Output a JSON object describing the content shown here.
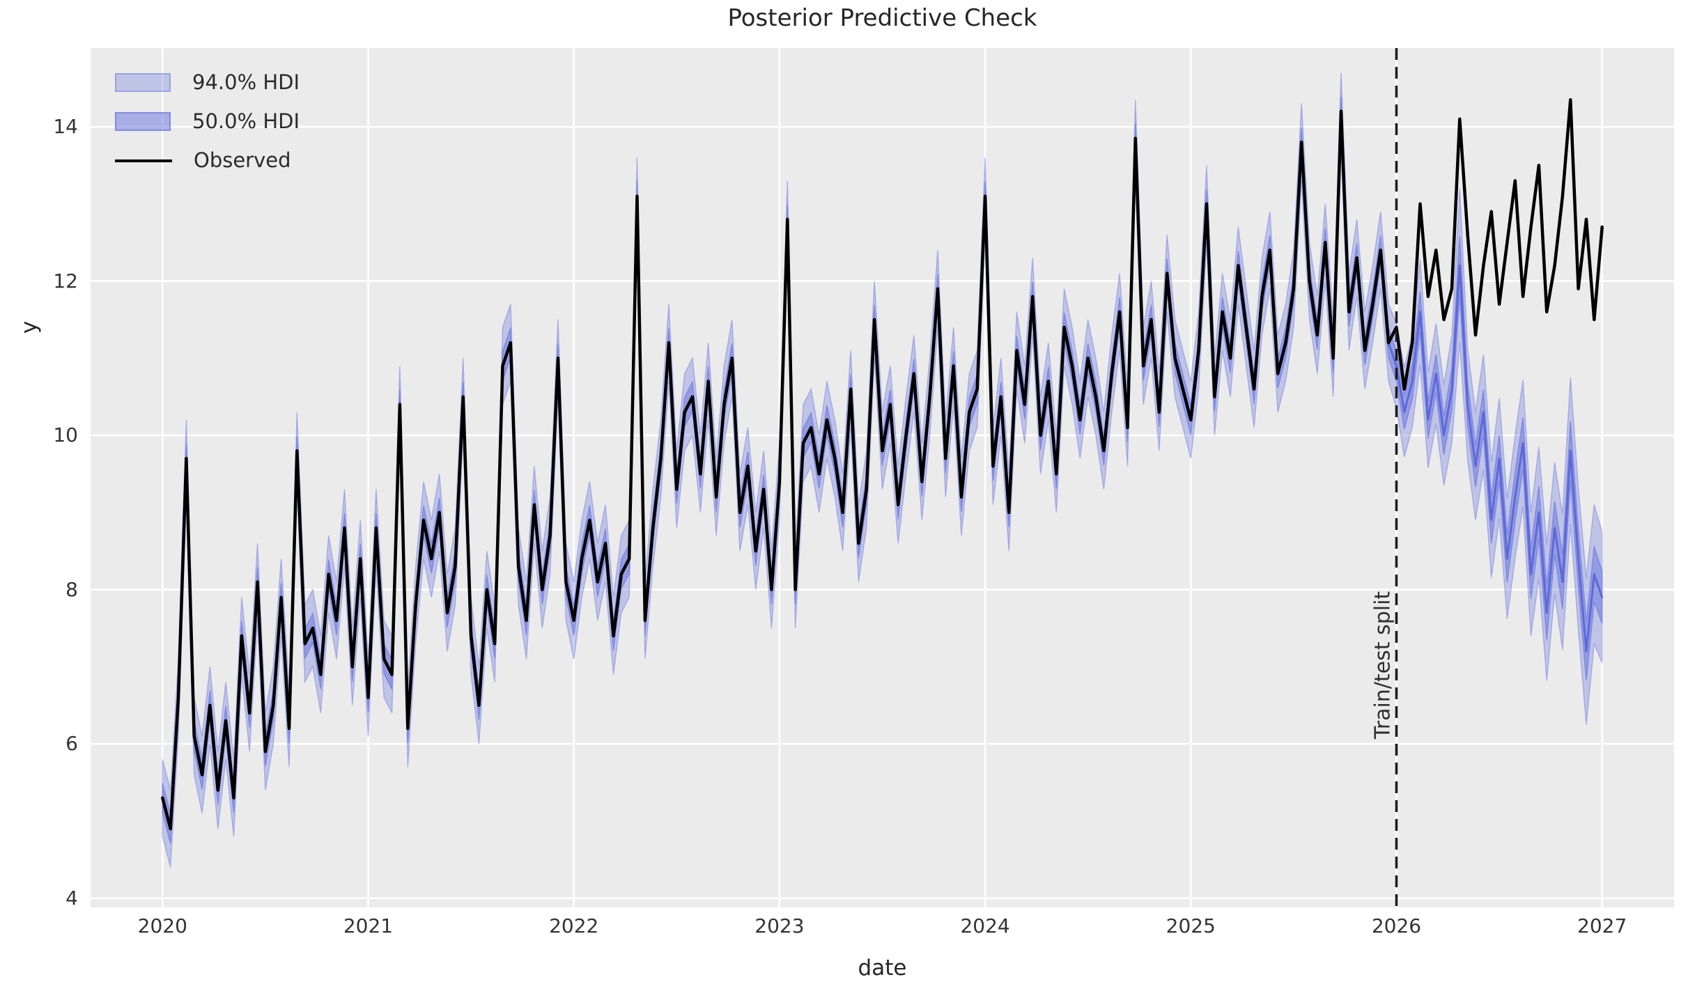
{
  "title": "Posterior Predictive Check",
  "legend": {
    "items": [
      {
        "label": "94.0% HDI",
        "swatch": "hdi94-band-swatch"
      },
      {
        "label": "50.0% HDI",
        "swatch": "hdi50-band-swatch"
      },
      {
        "label": "Observed",
        "swatch": "observed-line-swatch"
      }
    ]
  },
  "split_annotation": "Train/test split",
  "chart_data": {
    "type": "line",
    "title": "Posterior Predictive Check",
    "xlabel": "date",
    "ylabel": "y",
    "xlim": [
      2019.65,
      2027.35
    ],
    "ylim": [
      3.88,
      15.02
    ],
    "xticks": [
      2020,
      2021,
      2022,
      2023,
      2024,
      2025,
      2026,
      2027
    ],
    "yticks": [
      4,
      6,
      8,
      10,
      12,
      14
    ],
    "grid": true,
    "legend_position": "upper-left",
    "split_x": 2026.0,
    "split_label": "Train/test split",
    "colors": {
      "axes_background": "#ebebeb",
      "grid": "#ffffff",
      "observed_line": "#000000",
      "hdi_base": "#6c77de",
      "hdi94_fill": "rgba(108,119,222,0.35)",
      "hdi94_edge": "rgba(108,119,222,0.45)",
      "hdi50_fill": "rgba(108,119,222,0.52)",
      "hdi50_edge": "rgba(108,119,222,0.65)",
      "median_line": "rgba(88,100,214,0.9)",
      "split_line": "#1a1a1a",
      "text": "#262626"
    },
    "series": {
      "x_start": 2020.0,
      "x_step": 0.0384615,
      "note": "Weekly-sampled series 2020-2027; train region 2020.0-2025.96 (median tracks observed, halfwidths constant); test region 2026.0-2027.0 uses explicit forecast arrays.",
      "train_hdi94_halfwidth": 0.5,
      "train_hdi50_halfwidth": 0.19,
      "train_observed_by_year": [
        [
          5.3,
          4.9,
          6.6,
          9.7,
          6.1,
          5.6,
          6.5,
          5.4,
          6.3,
          5.3,
          7.4,
          6.4,
          8.1,
          5.9,
          6.5,
          7.9,
          6.2,
          9.8,
          7.3,
          7.5,
          6.9,
          8.2,
          7.6,
          8.8,
          7.0,
          8.4
        ],
        [
          6.6,
          8.8,
          7.1,
          6.9,
          10.4,
          6.2,
          7.8,
          8.9,
          8.4,
          9.0,
          7.7,
          8.3,
          10.5,
          7.4,
          6.5,
          8.0,
          7.3,
          10.9,
          11.2,
          8.3,
          7.6,
          9.1,
          8.0,
          8.7,
          11.0,
          8.1
        ],
        [
          7.6,
          8.4,
          8.9,
          8.1,
          8.6,
          7.4,
          8.2,
          8.4,
          13.1,
          7.6,
          8.8,
          9.7,
          11.2,
          9.3,
          10.3,
          10.5,
          9.5,
          10.7,
          9.2,
          10.4,
          11.0,
          9.0,
          9.6,
          8.5,
          9.3,
          8.0
        ],
        [
          9.4,
          12.8,
          8.0,
          9.9,
          10.1,
          9.5,
          10.2,
          9.7,
          9.0,
          10.6,
          8.6,
          9.3,
          11.5,
          9.8,
          10.4,
          9.1,
          10.0,
          10.8,
          9.4,
          10.5,
          11.9,
          9.7,
          10.9,
          9.2,
          10.3,
          10.6
        ],
        [
          13.1,
          9.6,
          10.5,
          9.0,
          11.1,
          10.4,
          11.8,
          10.0,
          10.7,
          9.5,
          11.4,
          10.9,
          10.2,
          11.0,
          10.5,
          9.8,
          10.8,
          11.6,
          10.1,
          13.85,
          10.9,
          11.5,
          10.3,
          12.1,
          11.0,
          10.6
        ],
        [
          10.2,
          11.1,
          13.0,
          10.5,
          11.6,
          11.0,
          12.2,
          11.4,
          10.6,
          11.8,
          12.4,
          10.8,
          11.2,
          11.9,
          13.8,
          12.0,
          11.3,
          12.5,
          11.0,
          14.2,
          11.6,
          12.3,
          11.1,
          11.7,
          12.4,
          11.2
        ]
      ],
      "test": {
        "x_start": 2026.0,
        "observed": [
          11.4,
          10.6,
          11.2,
          13.0,
          11.8,
          12.4,
          11.5,
          11.9,
          14.1,
          12.6,
          11.3,
          12.2,
          12.9,
          11.7,
          12.5,
          13.3,
          11.8,
          12.7,
          13.5,
          11.6,
          12.2,
          13.1,
          14.35,
          11.9,
          12.8,
          11.5,
          12.7
        ],
        "predicted_median": [
          10.9,
          10.3,
          10.7,
          11.6,
          10.2,
          10.8,
          10.0,
          10.6,
          12.2,
          10.4,
          9.6,
          10.3,
          8.9,
          9.7,
          8.4,
          9.2,
          9.9,
          8.2,
          9.0,
          7.7,
          8.8,
          8.1,
          9.8,
          8.4,
          7.2,
          8.2,
          7.9
        ],
        "hdi94_halfwidth": [
          0.55,
          0.58,
          0.6,
          0.68,
          0.62,
          0.65,
          0.65,
          0.7,
          1.0,
          0.72,
          0.7,
          0.75,
          0.75,
          0.78,
          0.78,
          0.8,
          0.82,
          0.8,
          0.85,
          0.88,
          0.85,
          0.88,
          0.95,
          0.92,
          0.95,
          0.9,
          0.85
        ],
        "hdi50_halfwidth": [
          0.2,
          0.22,
          0.23,
          0.26,
          0.24,
          0.25,
          0.25,
          0.27,
          0.38,
          0.28,
          0.27,
          0.29,
          0.3,
          0.3,
          0.31,
          0.32,
          0.33,
          0.32,
          0.34,
          0.35,
          0.34,
          0.35,
          0.38,
          0.37,
          0.38,
          0.36,
          0.34
        ]
      }
    }
  }
}
